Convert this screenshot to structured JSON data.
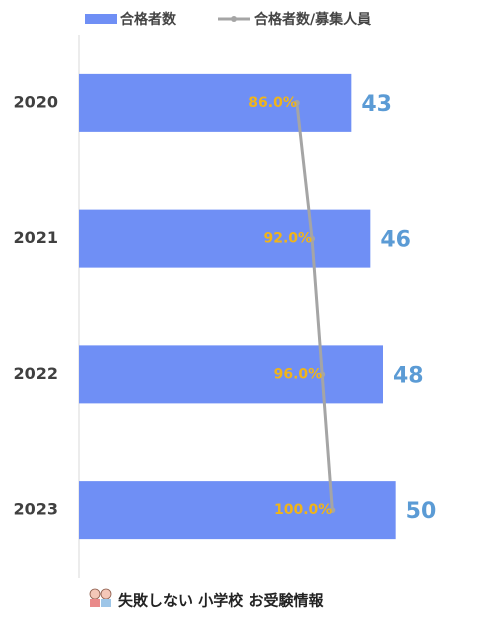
{
  "chart_data": {
    "type": "bar",
    "orientation": "horizontal",
    "categories": [
      "2020",
      "2021",
      "2022",
      "2023"
    ],
    "xlim": [
      0,
      60
    ],
    "x2lim": [
      0,
      150
    ],
    "series": [
      {
        "name": "合格者数",
        "color": "#6f8ff5",
        "values": [
          43,
          46,
          48,
          50
        ],
        "label_color": "#5b9bd5"
      },
      {
        "name": "合格者数/募集人員",
        "type": "line",
        "axis": "x2",
        "color": "#a5a5a5",
        "values": [
          86,
          92,
          96,
          100
        ],
        "value_labels": [
          "86.0%",
          "92.0%",
          "96.0%",
          "100.0%"
        ],
        "label_color": "#f0b419"
      }
    ]
  },
  "footer": "失敗しない 小学校 お受験情報"
}
